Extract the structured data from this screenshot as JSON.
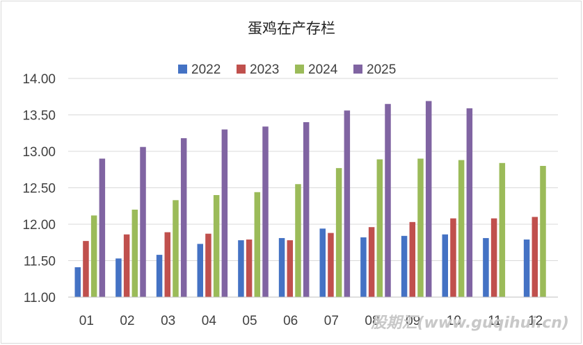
{
  "chart_data": {
    "type": "bar",
    "title": "蛋鸡在产存栏",
    "xlabel": "",
    "ylabel": "",
    "categories": [
      "01",
      "02",
      "03",
      "04",
      "05",
      "06",
      "07",
      "08",
      "09",
      "10",
      "11",
      "12"
    ],
    "ylim": [
      11.0,
      14.0
    ],
    "yticks": [
      "11.00",
      "11.50",
      "12.00",
      "12.50",
      "13.00",
      "13.50",
      "14.00"
    ],
    "grid": true,
    "legend_position": "top",
    "series": [
      {
        "name": "2022",
        "color": "#4472C4",
        "values": [
          11.41,
          11.53,
          11.58,
          11.73,
          11.78,
          11.81,
          11.94,
          11.82,
          11.84,
          11.86,
          11.81,
          11.79
        ]
      },
      {
        "name": "2023",
        "color": "#C0504D",
        "values": [
          11.77,
          11.86,
          11.89,
          11.87,
          11.79,
          11.78,
          11.88,
          11.96,
          12.03,
          12.08,
          12.08,
          12.1
        ]
      },
      {
        "name": "2024",
        "color": "#9BBB59",
        "values": [
          12.12,
          12.2,
          12.33,
          12.4,
          12.44,
          12.55,
          12.77,
          12.89,
          12.9,
          12.88,
          12.84,
          12.8
        ]
      },
      {
        "name": "2025",
        "color": "#8064A2",
        "values": [
          12.9,
          13.06,
          13.18,
          13.3,
          13.34,
          13.4,
          13.56,
          13.65,
          13.69,
          13.59,
          null,
          null
        ]
      }
    ]
  },
  "watermark": "股期汇(www.guqihui.cn)"
}
